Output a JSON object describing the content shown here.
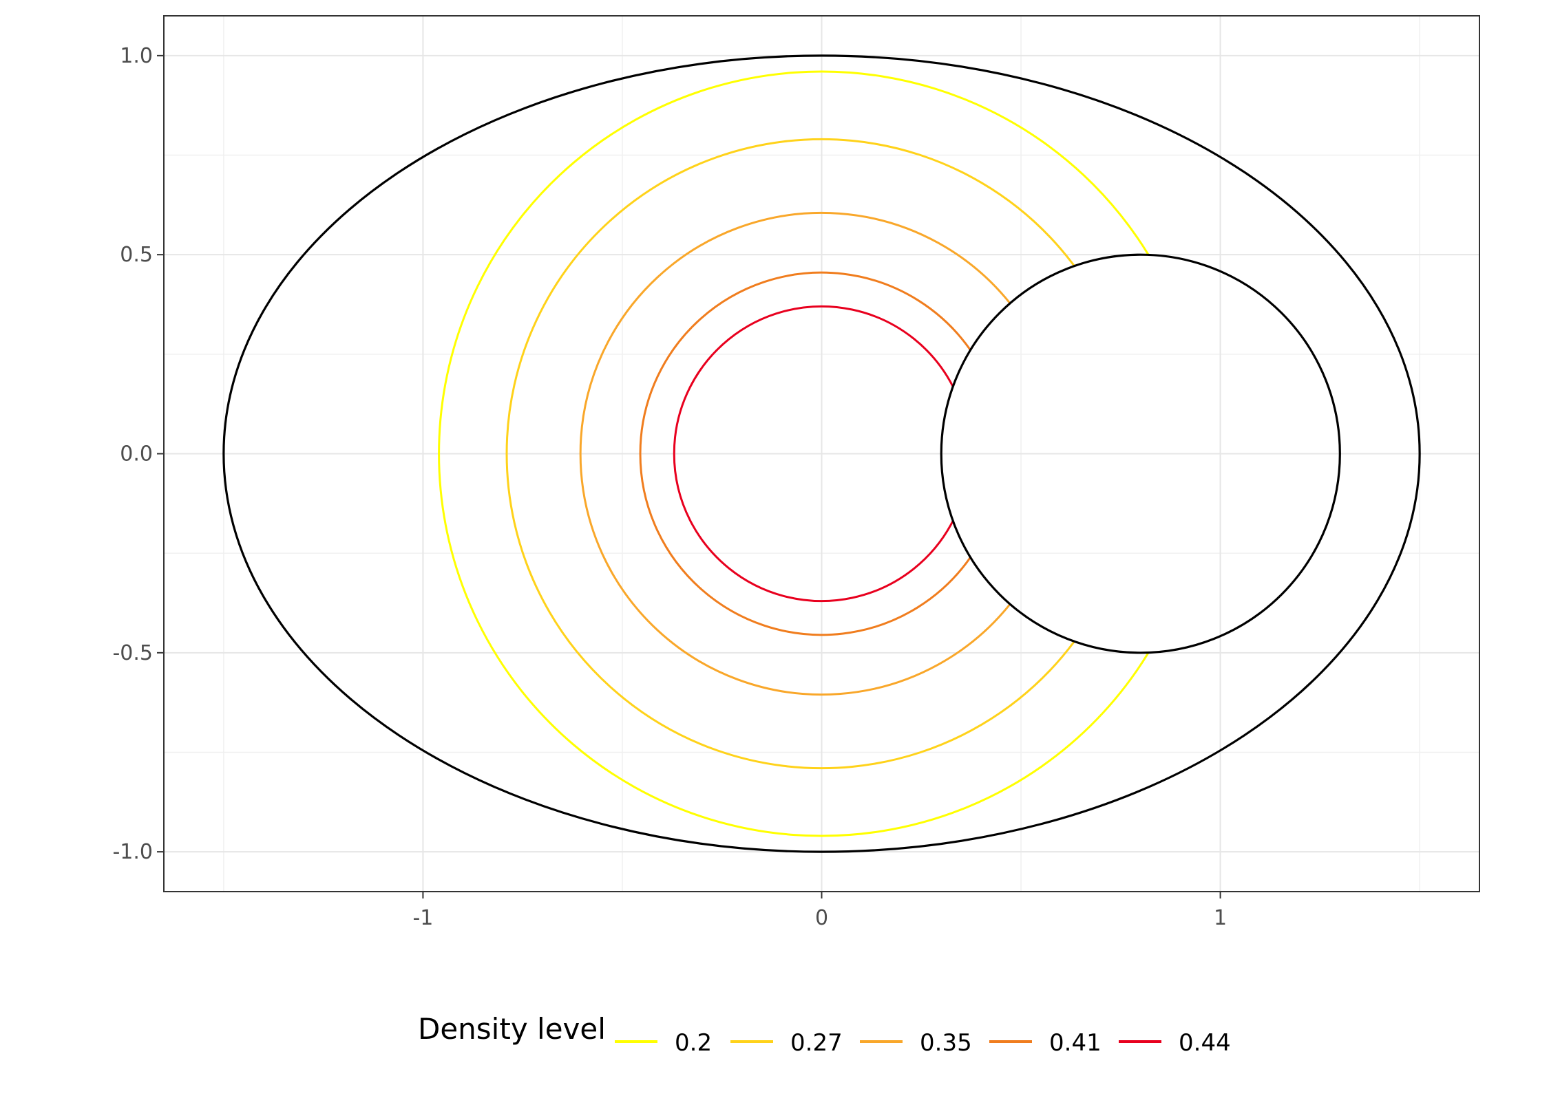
{
  "chart_data": {
    "type": "line",
    "title": "",
    "xlabel": "",
    "ylabel": "",
    "xlim": [
      -1.65,
      1.65
    ],
    "ylim": [
      -1.1,
      1.1
    ],
    "x_ticks": [
      -1,
      0,
      1
    ],
    "x_tick_labels": [
      "-1",
      "0",
      "1"
    ],
    "y_ticks": [
      1.0,
      0.5,
      0.0,
      -0.5,
      -1.0
    ],
    "y_tick_labels": [
      "1.0",
      "0.5",
      "0.0",
      "-0.5",
      "-1.0"
    ],
    "grid": true,
    "legend": {
      "title": "Density level",
      "position": "bottom",
      "entries": [
        {
          "label": "0.2",
          "color": "#FFFF00"
        },
        {
          "label": "0.27",
          "color": "#FFD21A"
        },
        {
          "label": "0.35",
          "color": "#F9A72A"
        },
        {
          "label": "0.41",
          "color": "#F07D1E"
        },
        {
          "label": "0.44",
          "color": "#E8001E"
        }
      ]
    },
    "shapes": [
      {
        "name": "outer-ellipse",
        "cx": 0,
        "cy": 0,
        "rx": 1.5,
        "ry": 1.0,
        "color": "#000000"
      },
      {
        "name": "inner-circle",
        "cx": 0.8,
        "cy": 0,
        "r": 0.5,
        "color": "#000000"
      }
    ],
    "series": [
      {
        "name": "0.2",
        "color": "#FFFF00",
        "radius": 0.96
      },
      {
        "name": "0.27",
        "color": "#FFD21A",
        "radius": 0.79
      },
      {
        "name": "0.35",
        "color": "#F9A72A",
        "radius": 0.605
      },
      {
        "name": "0.41",
        "color": "#F07D1E",
        "radius": 0.455
      },
      {
        "name": "0.44",
        "color": "#E8001E",
        "radius": 0.37
      }
    ]
  }
}
